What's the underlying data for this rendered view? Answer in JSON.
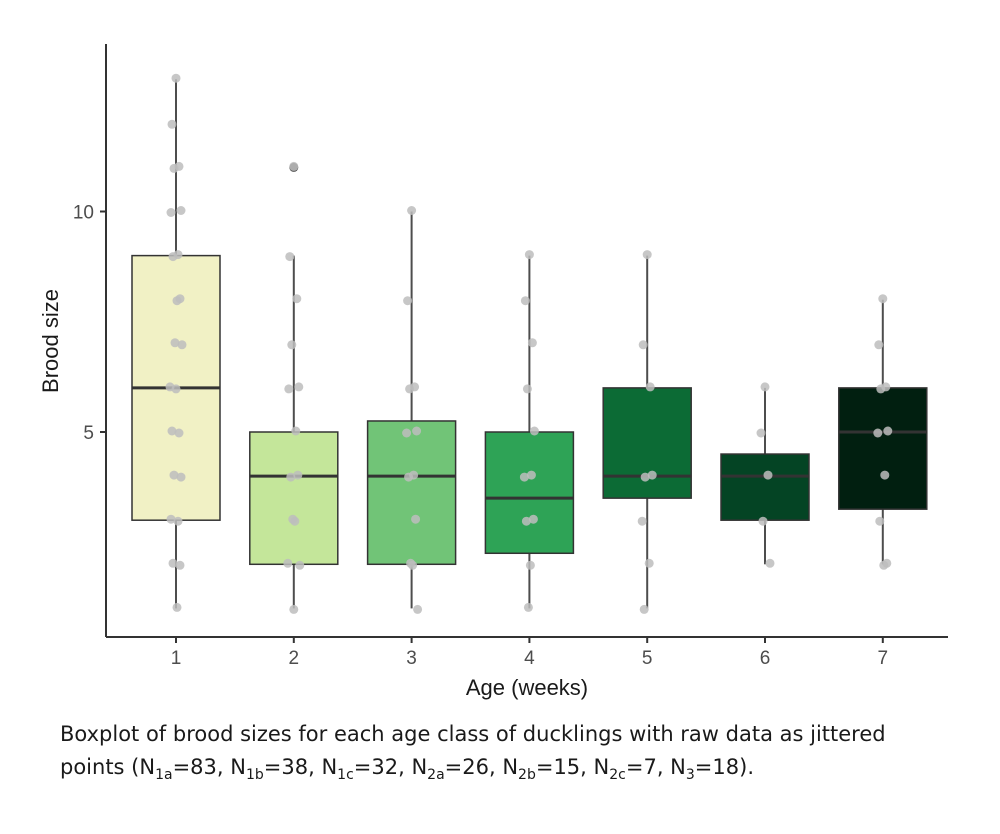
{
  "chart_data": {
    "type": "box",
    "title": "",
    "xlabel": "Age (weeks)",
    "ylabel": "Brood size",
    "ylim": [
      0,
      13.6
    ],
    "yticks": [
      5,
      10
    ],
    "grid": false,
    "legend": "none",
    "categories": [
      "1",
      "2",
      "3",
      "4",
      "5",
      "6",
      "7"
    ],
    "boxes": [
      {
        "category": "1",
        "whisker_low": 1,
        "q1": 3,
        "median": 6,
        "q3": 9,
        "whisker_high": 13,
        "fill": "#f1f1c5",
        "outliers": []
      },
      {
        "category": "2",
        "whisker_low": 1,
        "q1": 2,
        "median": 4,
        "q3": 5,
        "whisker_high": 9,
        "fill": "#c4e69a",
        "outliers": [
          11
        ]
      },
      {
        "category": "3",
        "whisker_low": 1,
        "q1": 2,
        "median": 4,
        "q3": 5.25,
        "whisker_high": 10,
        "fill": "#71c477",
        "outliers": []
      },
      {
        "category": "4",
        "whisker_low": 1,
        "q1": 2.25,
        "median": 3.5,
        "q3": 5,
        "whisker_high": 9,
        "fill": "#2ea356",
        "outliers": []
      },
      {
        "category": "5",
        "whisker_low": 1,
        "q1": 3.5,
        "median": 4,
        "q3": 6,
        "whisker_high": 9,
        "fill": "#0c6b35",
        "outliers": []
      },
      {
        "category": "6",
        "whisker_low": 2,
        "q1": 3,
        "median": 4,
        "q3": 4.5,
        "whisker_high": 6,
        "fill": "#044424",
        "outliers": []
      },
      {
        "category": "7",
        "whisker_low": 2,
        "q1": 3.25,
        "median": 5,
        "q3": 6,
        "whisker_high": 8,
        "fill": "#011f10",
        "outliers": []
      }
    ],
    "jittered_points": [
      {
        "category": "1",
        "values": [
          13,
          12,
          11,
          11,
          10,
          10,
          9,
          9,
          8,
          8,
          7,
          7,
          6,
          6,
          5,
          5,
          4,
          4,
          3,
          3,
          2,
          2,
          1
        ]
      },
      {
        "category": "2",
        "values": [
          11,
          9,
          8,
          7,
          6,
          6,
          5,
          4,
          4,
          3,
          3,
          2,
          2,
          1
        ]
      },
      {
        "category": "3",
        "values": [
          10,
          8,
          6,
          6,
          5,
          5,
          4,
          4,
          3,
          2,
          2,
          1
        ]
      },
      {
        "category": "4",
        "values": [
          9,
          8,
          7,
          6,
          5,
          4,
          4,
          3,
          3,
          2,
          1
        ]
      },
      {
        "category": "5",
        "values": [
          9,
          7,
          6,
          4,
          4,
          3,
          2,
          1
        ]
      },
      {
        "category": "6",
        "values": [
          6,
          5,
          4,
          3,
          2
        ]
      },
      {
        "category": "7",
        "values": [
          8,
          7,
          6,
          6,
          5,
          5,
          4,
          3,
          2,
          2
        ]
      }
    ],
    "colors": {
      "median": "#333333",
      "whisker": "#4d4d4d",
      "box_stroke": "#333333",
      "point": "#bdbdbd",
      "axis": "#333333"
    }
  },
  "caption": {
    "line1": "Boxplot of brood sizes for each age class of ducklings with raw data as jittered",
    "line2_prefix": "points (N",
    "sample_sizes": [
      {
        "sub": "1a",
        "n": "83"
      },
      {
        "sub": "1b",
        "n": "38"
      },
      {
        "sub": "1c",
        "n": "32"
      },
      {
        "sub": "2a",
        "n": "26"
      },
      {
        "sub": "2b",
        "n": "15"
      },
      {
        "sub": "2c",
        "n": "7"
      },
      {
        "sub": "3",
        "n": "18"
      }
    ],
    "line2_suffix": ")."
  }
}
